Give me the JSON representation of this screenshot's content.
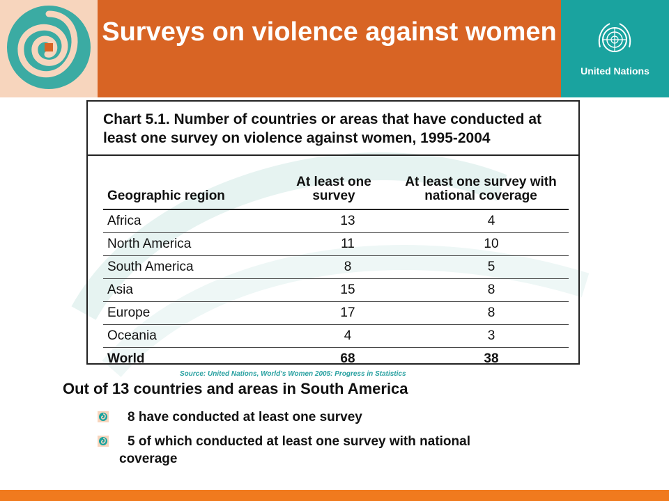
{
  "header": {
    "title": "Surveys on violence against women",
    "organization": "United Nations",
    "colors": {
      "title_band": "#d86424",
      "un_band": "#1aa39f",
      "logo_bg": "#f7d5bd"
    }
  },
  "chart_data": {
    "type": "table",
    "title": "Chart 5.1. Number of countries or areas that have conducted at least one survey on violence against women, 1995-2004",
    "columns": [
      "Geographic region",
      "At least one survey",
      "At least one survey with national coverage"
    ],
    "rows": [
      {
        "region": "Africa",
        "at_least_one": "13",
        "national": "4"
      },
      {
        "region": "North America",
        "at_least_one": "11",
        "national": "10"
      },
      {
        "region": "South America",
        "at_least_one": "8",
        "national": "5"
      },
      {
        "region": "Asia",
        "at_least_one": "15",
        "national": "8"
      },
      {
        "region": "Europe",
        "at_least_one": "17",
        "national": "8"
      },
      {
        "region": "Oceania",
        "at_least_one": "4",
        "national": "3"
      },
      {
        "region": "World",
        "at_least_one": "68",
        "national": "38"
      }
    ]
  },
  "source": "Source: United Nations,  World’s Women 2005: Progress in Statistics",
  "content": {
    "headline": "Out of 13 countries and areas in South America",
    "bullets": [
      {
        "line1": "8 have conducted at least one survey"
      },
      {
        "line1": "5 of which conducted at least one survey with national",
        "line2": "coverage"
      }
    ]
  },
  "footer": {
    "bar_color": "#f07a1e"
  }
}
